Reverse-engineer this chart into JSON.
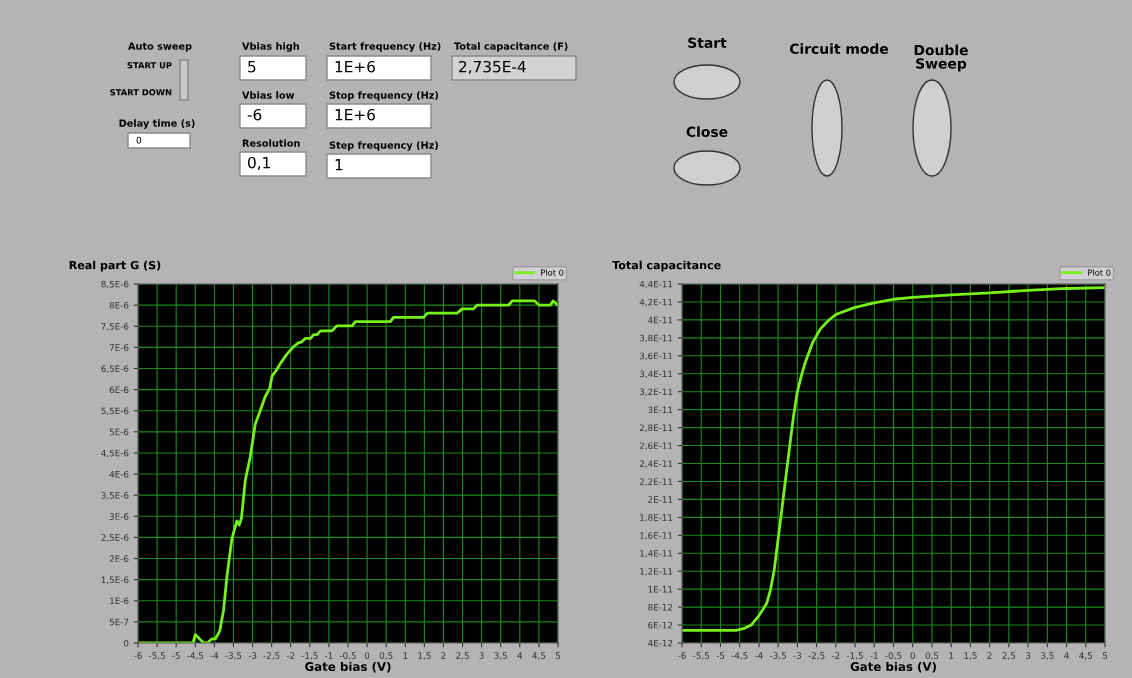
{
  "chart_data": [
    {
      "type": "other",
      "annotations": [
        "Auto sweep",
        "START UP",
        "START DOWN",
        "Delay time (s)",
        "0",
        "Vbias high",
        "5",
        "Vbias low",
        "-6",
        "Resolution",
        "0,1",
        "Start frequency (Hz)",
        "1E+6",
        "Stop frequency (Hz)",
        "1E+6",
        "Step frequency (Hz)",
        "1",
        "Total capacitance (F)",
        "2,735E-4",
        "Start",
        "Close",
        "Circuit mode",
        "Double\nSweep"
      ]
    },
    {
      "type": "line",
      "title": "Real part G (S)",
      "xlabel": "Gate bias (V)",
      "legend": "top right",
      "grid": true,
      "x": [
        -6,
        -4.56,
        -4.5,
        -4.28,
        -4.19,
        -4.06,
        -3.97,
        -3.86,
        -3.76,
        -3.67,
        -3.54,
        -3.41,
        -3.35,
        -3.29,
        -3.19,
        -3.06,
        -2.93,
        -2.8,
        -2.67,
        -2.55,
        -2.49,
        -2.36,
        -2.27,
        -2.1,
        -1.92,
        -1.81,
        -1.71,
        -1.62,
        -1.48,
        -1.4,
        -1.31,
        -1.22,
        -0.92,
        -0.79,
        -0.39,
        -0.31,
        0.61,
        0.69,
        1.48,
        1.58,
        2.36,
        2.49,
        2.79,
        2.88,
        3.71,
        3.8,
        4.39,
        4.5,
        4.8,
        4.87,
        5
      ],
      "series": [
        {
          "name": "Plot 0",
          "color": "#76f21a",
          "values": [
            0,
            0,
            2e-07,
            0,
            0,
            1e-07,
            1e-07,
            2.8e-07,
            7.7e-07,
            1.58e-06,
            2.47e-06,
            2.89e-06,
            2.79e-06,
            2.96e-06,
            3.85e-06,
            4.41e-06,
            5.18e-06,
            5.5e-06,
            5.83e-06,
            6.03e-06,
            6.32e-06,
            6.48e-06,
            6.62e-06,
            6.84e-06,
            7.02e-06,
            7.1e-06,
            7.13e-06,
            7.21e-06,
            7.21e-06,
            7.3e-06,
            7.3e-06,
            7.39e-06,
            7.39e-06,
            7.51e-06,
            7.51e-06,
            7.61e-06,
            7.61e-06,
            7.71e-06,
            7.71e-06,
            7.81e-06,
            7.81e-06,
            7.91e-06,
            7.91e-06,
            8e-06,
            8e-06,
            8.1e-06,
            8.1e-06,
            8e-06,
            8e-06,
            8.1e-06,
            8e-06
          ]
        }
      ],
      "xlim": [
        -6,
        5
      ],
      "xticks": [
        -6,
        {
          "value": -5.5,
          "label": "-5,5"
        },
        -5,
        {
          "value": -4.5,
          "label": "-4,5"
        },
        -4,
        {
          "value": -3.5,
          "label": "-3,5"
        },
        -3,
        {
          "value": -2.5,
          "label": "-2,5"
        },
        -2,
        {
          "value": -1.5,
          "label": "-1,5"
        },
        -1,
        {
          "value": -0.5,
          "label": "-0,5"
        },
        0,
        {
          "value": 0.5,
          "label": "0,5"
        },
        1,
        {
          "value": 1.5,
          "label": "1,5"
        },
        2,
        {
          "value": 2.5,
          "label": "2,5"
        },
        3,
        {
          "value": 3.5,
          "label": "3,5"
        },
        4,
        {
          "value": 4.5,
          "label": "4,5"
        },
        5
      ],
      "ylim": [
        0,
        8.5e-06
      ],
      "yticks": [
        0,
        {
          "value": 5e-07,
          "label": "5E-7"
        },
        {
          "value": 1e-06,
          "label": "1E-6"
        },
        {
          "value": 1.5e-06,
          "label": "1,5E-6"
        },
        {
          "value": 2e-06,
          "label": "2E-6"
        },
        {
          "value": 2.5e-06,
          "label": "2,5E-6"
        },
        {
          "value": 3e-06,
          "label": "3E-6"
        },
        {
          "value": 3.5e-06,
          "label": "3,5E-6"
        },
        {
          "value": 4e-06,
          "label": "4E-6"
        },
        {
          "value": 4.5e-06,
          "label": "4,5E-6"
        },
        {
          "value": 5e-06,
          "label": "5E-6"
        },
        {
          "value": 5.5e-06,
          "label": "5,5E-6"
        },
        {
          "value": 6e-06,
          "label": "6E-6"
        },
        {
          "value": 6.5e-06,
          "label": "6,5E-6"
        },
        {
          "value": 7e-06,
          "label": "7E-6"
        },
        {
          "value": 7.5e-06,
          "label": "7,5E-6"
        },
        {
          "value": 8e-06,
          "label": "8E-6"
        },
        {
          "value": 8.5e-06,
          "label": "8,5E-6"
        }
      ]
    },
    {
      "type": "line",
      "title": "Total capacitance",
      "xlabel": "Gate bias (V)",
      "legend": "top right",
      "grid": true,
      "x": [
        -6,
        -4.6,
        -4.4,
        -4.2,
        -4.0,
        -3.8,
        -3.7,
        -3.6,
        -3.5,
        -3.4,
        -3.3,
        -3.2,
        -3.1,
        -3.0,
        -2.9,
        -2.8,
        -2.6,
        -2.4,
        -2.2,
        -2.0,
        -1.5,
        -1.0,
        -0.5,
        0,
        1,
        2,
        3,
        4,
        5
      ],
      "series": [
        {
          "name": "Plot 0",
          "color": "#76f21a",
          "values": [
            5.4e-12,
            5.4e-12,
            5.6e-12,
            6e-12,
            7.05e-12,
            8.4e-12,
            9.9e-12,
            1.22e-11,
            1.56e-11,
            1.9e-11,
            2.25e-11,
            2.59e-11,
            2.93e-11,
            3.2e-11,
            3.37e-11,
            3.52e-11,
            3.75e-11,
            3.9e-11,
            3.99e-11,
            4.06e-11,
            4.14e-11,
            4.19e-11,
            4.23e-11,
            4.25e-11,
            4.28e-11,
            4.3e-11,
            4.33e-11,
            4.35e-11,
            4.36e-11
          ]
        }
      ],
      "xlim": [
        -6,
        5
      ],
      "xticks": [
        -6,
        {
          "value": -5.5,
          "label": "-5,5"
        },
        -5,
        {
          "value": -4.5,
          "label": "-4,5"
        },
        -4,
        {
          "value": -3.5,
          "label": "-3,5"
        },
        -3,
        {
          "value": -2.5,
          "label": "-2,5"
        },
        -2,
        {
          "value": -1.5,
          "label": "-1,5"
        },
        -1,
        {
          "value": -0.5,
          "label": "-0,5"
        },
        0,
        {
          "value": 0.5,
          "label": "0,5"
        },
        1,
        {
          "value": 1.5,
          "label": "1,5"
        },
        2,
        {
          "value": 2.5,
          "label": "2,5"
        },
        3,
        {
          "value": 3.5,
          "label": "3,5"
        },
        4,
        {
          "value": 4.5,
          "label": "4,5"
        },
        5
      ],
      "ylim": [
        4e-12,
        4.4e-11
      ],
      "yticks": [
        {
          "value": 4e-12,
          "label": "4E-12"
        },
        {
          "value": 6e-12,
          "label": "6E-12"
        },
        {
          "value": 8e-12,
          "label": "8E-12"
        },
        {
          "value": 1e-11,
          "label": "1E-11"
        },
        {
          "value": 1.2e-11,
          "label": "1,2E-11"
        },
        {
          "value": 1.4e-11,
          "label": "1,4E-11"
        },
        {
          "value": 1.6e-11,
          "label": "1,6E-11"
        },
        {
          "value": 1.8e-11,
          "label": "1,8E-11"
        },
        {
          "value": 2e-11,
          "label": "2E-11"
        },
        {
          "value": 2.2e-11,
          "label": "2,2E-11"
        },
        {
          "value": 2.4e-11,
          "label": "2,4E-11"
        },
        {
          "value": 2.6e-11,
          "label": "2,6E-11"
        },
        {
          "value": 2.8e-11,
          "label": "2,8E-11"
        },
        {
          "value": 3e-11,
          "label": "3E-11"
        },
        {
          "value": 3.2e-11,
          "label": "3,2E-11"
        },
        {
          "value": 3.4e-11,
          "label": "3,4E-11"
        },
        {
          "value": 3.6e-11,
          "label": "3,6E-11"
        },
        {
          "value": 3.8e-11,
          "label": "3,8E-11"
        },
        {
          "value": 4e-11,
          "label": "4E-11"
        },
        {
          "value": 4.2e-11,
          "label": "4,2E-11"
        },
        {
          "value": 4.4e-11,
          "label": "4,4E-11"
        }
      ]
    }
  ]
}
